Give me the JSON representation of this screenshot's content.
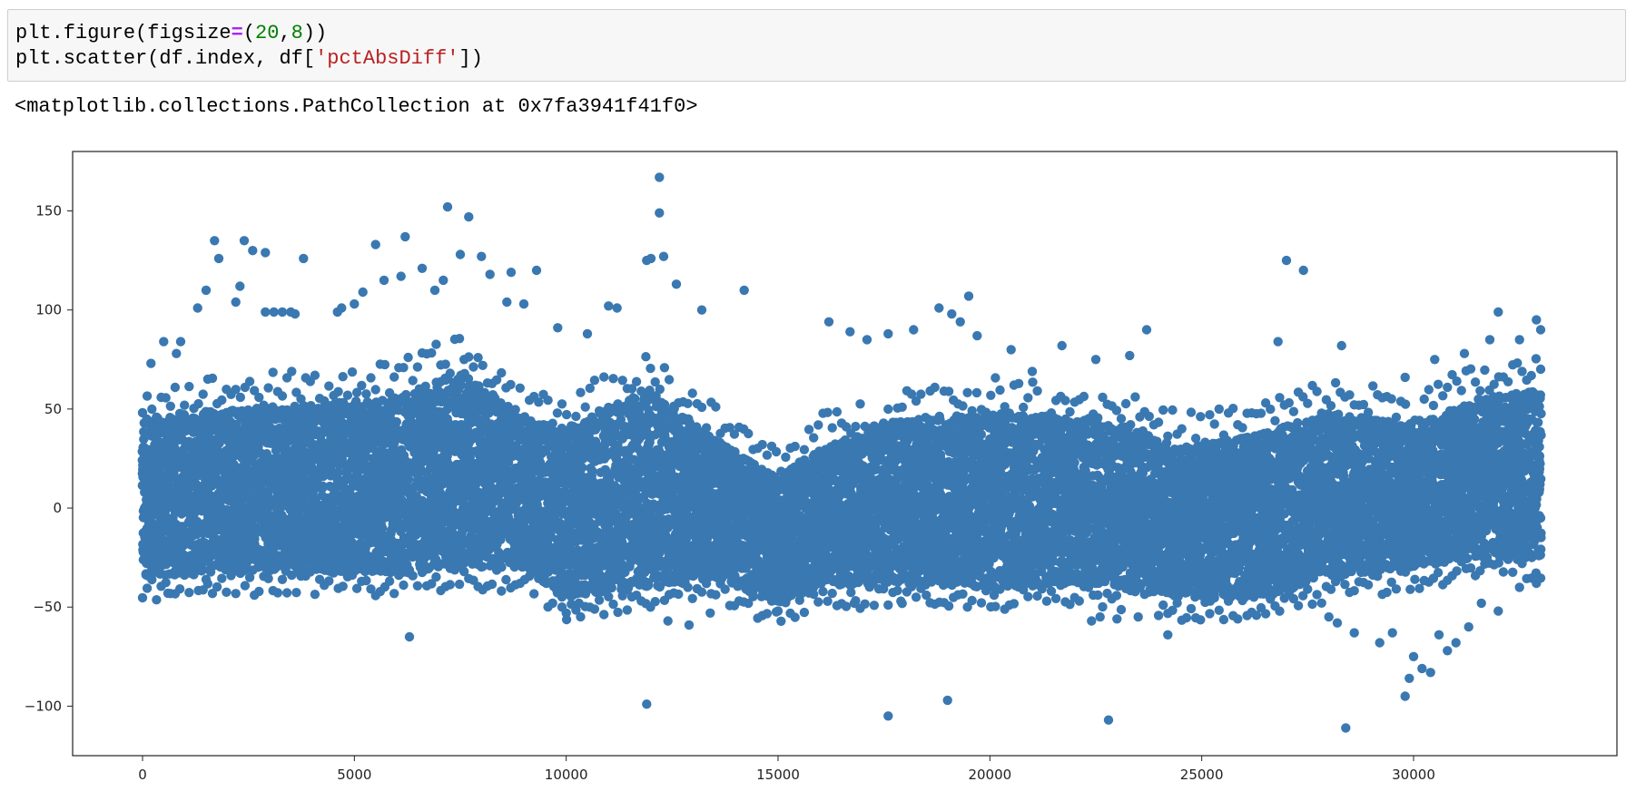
{
  "cell": {
    "input_lines": [
      {
        "segments": [
          {
            "text": "plt.figure(figsize",
            "kind": "plain"
          },
          {
            "text": "=",
            "kind": "op"
          },
          {
            "text": "(",
            "kind": "plain"
          },
          {
            "text": "20",
            "kind": "num"
          },
          {
            "text": ",",
            "kind": "plain"
          },
          {
            "text": "8",
            "kind": "num"
          },
          {
            "text": "))",
            "kind": "plain"
          }
        ]
      },
      {
        "segments": [
          {
            "text": "plt.scatter(df.index, df[",
            "kind": "plain"
          },
          {
            "text": "'pctAbsDiff'",
            "kind": "str"
          },
          {
            "text": "])",
            "kind": "plain"
          }
        ]
      }
    ],
    "output_text": "<matplotlib.collections.PathCollection at 0x7fa3941f41f0>"
  },
  "colors": {
    "marker": "#3a78b1",
    "axes_edge": "#222222",
    "code_bg": "#f7f7f7",
    "code_op": "#aa22ff",
    "code_num": "#008000",
    "code_str": "#ba2121"
  },
  "chart_data": {
    "type": "scatter",
    "title": "",
    "xlabel": "",
    "ylabel": "",
    "xlim": [
      -1650,
      34800
    ],
    "ylim": [
      -125,
      180
    ],
    "x_ticks": [
      0,
      5000,
      10000,
      15000,
      20000,
      25000,
      30000
    ],
    "x_tick_labels": [
      "0",
      "5000",
      "10000",
      "15000",
      "20000",
      "25000",
      "30000"
    ],
    "y_ticks": [
      -100,
      -50,
      0,
      50,
      100,
      150
    ],
    "y_tick_labels": [
      "−100",
      "−50",
      "0",
      "50",
      "100",
      "150"
    ],
    "grid": false,
    "x_range": [
      0,
      33000
    ],
    "band": {
      "x": [
        0,
        2000,
        4000,
        6000,
        7500,
        9000,
        10000,
        12000,
        13500,
        15000,
        16000,
        18000,
        20000,
        22000,
        23500,
        24500,
        26500,
        28000,
        30000,
        31500,
        33000
      ],
      "upper": [
        45,
        50,
        52,
        56,
        70,
        45,
        40,
        60,
        35,
        15,
        30,
        45,
        48,
        45,
        40,
        30,
        38,
        48,
        42,
        55,
        60
      ],
      "lower": [
        -35,
        -32,
        -32,
        -33,
        -30,
        -30,
        -45,
        -40,
        -35,
        -48,
        -40,
        -38,
        -40,
        -38,
        -40,
        -45,
        -45,
        -35,
        -30,
        -25,
        -25
      ]
    },
    "outliers": [
      {
        "x": 12200,
        "y": 167
      },
      {
        "x": 12200,
        "y": 149
      },
      {
        "x": 7200,
        "y": 152
      },
      {
        "x": 7700,
        "y": 147
      },
      {
        "x": 1700,
        "y": 135
      },
      {
        "x": 2400,
        "y": 135
      },
      {
        "x": 2600,
        "y": 130
      },
      {
        "x": 2900,
        "y": 129
      },
      {
        "x": 1800,
        "y": 126
      },
      {
        "x": 3800,
        "y": 126
      },
      {
        "x": 6200,
        "y": 137
      },
      {
        "x": 5500,
        "y": 133
      },
      {
        "x": 7500,
        "y": 128
      },
      {
        "x": 8000,
        "y": 127
      },
      {
        "x": 12000,
        "y": 126
      },
      {
        "x": 12300,
        "y": 127
      },
      {
        "x": 11900,
        "y": 125
      },
      {
        "x": 9300,
        "y": 120
      },
      {
        "x": 6600,
        "y": 121
      },
      {
        "x": 8700,
        "y": 119
      },
      {
        "x": 14200,
        "y": 110
      },
      {
        "x": 13200,
        "y": 100
      },
      {
        "x": 12600,
        "y": 113
      },
      {
        "x": 1300,
        "y": 101
      },
      {
        "x": 1500,
        "y": 110
      },
      {
        "x": 2300,
        "y": 112
      },
      {
        "x": 2200,
        "y": 104
      },
      {
        "x": 2900,
        "y": 99
      },
      {
        "x": 3100,
        "y": 99
      },
      {
        "x": 3300,
        "y": 99
      },
      {
        "x": 3500,
        "y": 99
      },
      {
        "x": 3600,
        "y": 98
      },
      {
        "x": 4600,
        "y": 99
      },
      {
        "x": 4700,
        "y": 101
      },
      {
        "x": 5000,
        "y": 103
      },
      {
        "x": 5200,
        "y": 109
      },
      {
        "x": 5700,
        "y": 115
      },
      {
        "x": 6100,
        "y": 117
      },
      {
        "x": 6900,
        "y": 110
      },
      {
        "x": 7100,
        "y": 115
      },
      {
        "x": 8200,
        "y": 118
      },
      {
        "x": 8600,
        "y": 104
      },
      {
        "x": 9000,
        "y": 103
      },
      {
        "x": 9800,
        "y": 91
      },
      {
        "x": 11000,
        "y": 102
      },
      {
        "x": 11200,
        "y": 101
      },
      {
        "x": 10500,
        "y": 88
      },
      {
        "x": 16200,
        "y": 94
      },
      {
        "x": 16700,
        "y": 89
      },
      {
        "x": 17100,
        "y": 85
      },
      {
        "x": 17600,
        "y": 88
      },
      {
        "x": 18200,
        "y": 90
      },
      {
        "x": 18800,
        "y": 101
      },
      {
        "x": 19100,
        "y": 98
      },
      {
        "x": 19300,
        "y": 94
      },
      {
        "x": 19500,
        "y": 107
      },
      {
        "x": 19700,
        "y": 87
      },
      {
        "x": 20500,
        "y": 80
      },
      {
        "x": 21000,
        "y": 69
      },
      {
        "x": 21700,
        "y": 82
      },
      {
        "x": 22500,
        "y": 75
      },
      {
        "x": 23300,
        "y": 77
      },
      {
        "x": 23700,
        "y": 90
      },
      {
        "x": 27000,
        "y": 125
      },
      {
        "x": 27400,
        "y": 120
      },
      {
        "x": 26800,
        "y": 84
      },
      {
        "x": 28300,
        "y": 82
      },
      {
        "x": 29800,
        "y": 66
      },
      {
        "x": 30500,
        "y": 75
      },
      {
        "x": 31200,
        "y": 78
      },
      {
        "x": 31800,
        "y": 85
      },
      {
        "x": 32000,
        "y": 99
      },
      {
        "x": 32500,
        "y": 85
      },
      {
        "x": 32900,
        "y": 95
      },
      {
        "x": 33000,
        "y": 90
      },
      {
        "x": 800,
        "y": 78
      },
      {
        "x": 500,
        "y": 84
      },
      {
        "x": 900,
        "y": 84
      },
      {
        "x": 200,
        "y": 73
      },
      {
        "x": 11900,
        "y": -99
      },
      {
        "x": 17600,
        "y": -105
      },
      {
        "x": 19000,
        "y": -97
      },
      {
        "x": 22800,
        "y": -107
      },
      {
        "x": 28400,
        "y": -111
      },
      {
        "x": 29800,
        "y": -95
      },
      {
        "x": 29900,
        "y": -86
      },
      {
        "x": 30200,
        "y": -81
      },
      {
        "x": 30400,
        "y": -83
      },
      {
        "x": 30000,
        "y": -75
      },
      {
        "x": 30800,
        "y": -72
      },
      {
        "x": 31000,
        "y": -68
      },
      {
        "x": 6300,
        "y": -65
      },
      {
        "x": 24200,
        "y": -64
      },
      {
        "x": 12900,
        "y": -59
      },
      {
        "x": 12400,
        "y": -57
      },
      {
        "x": 13400,
        "y": -53
      },
      {
        "x": 22400,
        "y": -57
      },
      {
        "x": 22600,
        "y": -55
      },
      {
        "x": 23000,
        "y": -56
      },
      {
        "x": 23500,
        "y": -55
      },
      {
        "x": 28000,
        "y": -55
      },
      {
        "x": 28200,
        "y": -58
      },
      {
        "x": 28600,
        "y": -63
      },
      {
        "x": 29200,
        "y": -68
      },
      {
        "x": 29500,
        "y": -63
      },
      {
        "x": 30600,
        "y": -64
      },
      {
        "x": 31300,
        "y": -60
      },
      {
        "x": 31600,
        "y": -48
      },
      {
        "x": 32000,
        "y": -52
      },
      {
        "x": 32500,
        "y": -40
      },
      {
        "x": 32900,
        "y": -38
      },
      {
        "x": 15000,
        "y": -52
      },
      {
        "x": 16800,
        "y": -48
      },
      {
        "x": 17900,
        "y": -47
      },
      {
        "x": 18500,
        "y": -44
      },
      {
        "x": 20100,
        "y": -44
      },
      {
        "x": 25200,
        "y": -47
      },
      {
        "x": 26100,
        "y": -44
      },
      {
        "x": 10000,
        "y": -53
      },
      {
        "x": 9900,
        "y": -50
      },
      {
        "x": 10300,
        "y": -48
      },
      {
        "x": 600,
        "y": -43
      },
      {
        "x": 1500,
        "y": -36
      }
    ]
  }
}
